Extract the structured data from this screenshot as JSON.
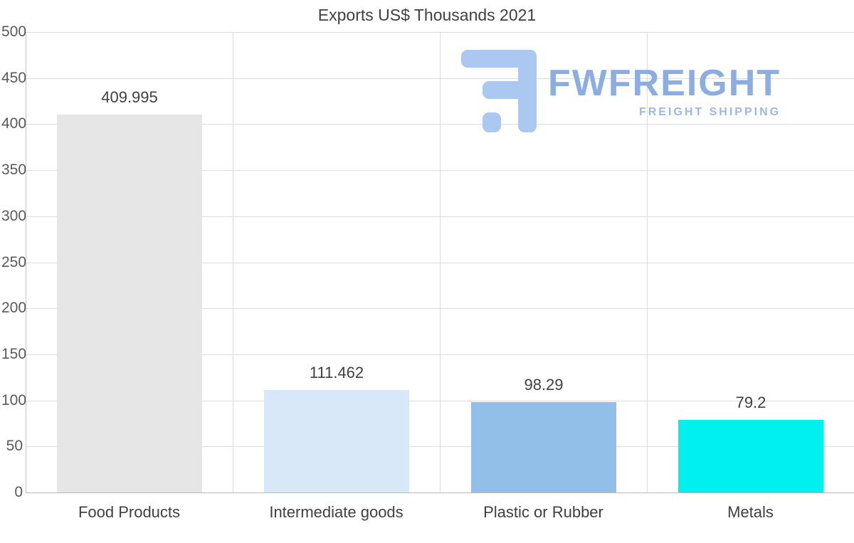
{
  "chart_data": {
    "type": "bar",
    "title": "Exports US$ Thousands 2021",
    "categories": [
      "Food Products",
      "Intermediate goods",
      "Plastic or Rubber",
      "Metals"
    ],
    "values": [
      409.995,
      111.462,
      98.29,
      79.2
    ],
    "value_labels": [
      "409.995",
      "111.462",
      "98.29",
      "79.2"
    ],
    "bar_colors": [
      "#e6e6e6",
      "#d9e8f8",
      "#92bfe7",
      "#00efef"
    ],
    "xlabel": "",
    "ylabel": "",
    "ylim": [
      0,
      500
    ],
    "yticks": [
      0,
      50,
      100,
      150,
      200,
      250,
      300,
      350,
      400,
      450,
      500
    ],
    "grid": "horizontal gridlines with vertical column separators",
    "legend": "none"
  },
  "logo": {
    "brand": "FWFREIGHT",
    "subtitle": "FREIGHT SHIPPING",
    "color": "#8cade0"
  },
  "colors": {
    "background": "#ffffff",
    "gridline": "#dcdcdc",
    "axis": "#b8b8b8",
    "title_text": "#404040",
    "tick_text": "#595959"
  }
}
